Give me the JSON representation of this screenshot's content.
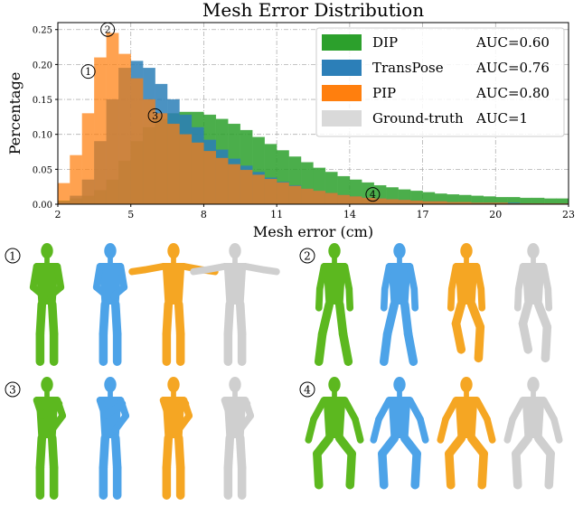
{
  "chart_data": {
    "type": "bar",
    "title": "Mesh Error Distribution",
    "xlabel": "Mesh error (cm)",
    "ylabel": "Percentage",
    "xlim": [
      2,
      23
    ],
    "ylim": [
      0,
      0.26
    ],
    "xticks": [
      "2",
      "5",
      "8",
      "11",
      "14",
      "17",
      "20",
      "23"
    ],
    "yticks": [
      "0.00",
      "0.05",
      "0.10",
      "0.15",
      "0.20",
      "0.25"
    ],
    "bin_width": 0.5,
    "x_bin_starts": [
      2.0,
      2.5,
      3.0,
      3.5,
      4.0,
      4.5,
      5.0,
      5.5,
      6.0,
      6.5,
      7.0,
      7.5,
      8.0,
      8.5,
      9.0,
      9.5,
      10.0,
      10.5,
      11.0,
      11.5,
      12.0,
      12.5,
      13.0,
      13.5,
      14.0,
      14.5,
      15.0,
      15.5,
      16.0,
      16.5,
      17.0,
      17.5,
      18.0,
      18.5,
      19.0,
      19.5,
      20.0,
      20.5,
      21.0,
      21.5,
      22.0,
      22.5
    ],
    "grid": true,
    "legend_position": "top-right",
    "series": [
      {
        "name": "DIP",
        "auc": "AUC=0.60",
        "color": "#2ca02c",
        "values": [
          0.005,
          0.008,
          0.012,
          0.02,
          0.035,
          0.062,
          0.09,
          0.11,
          0.122,
          0.13,
          0.132,
          0.132,
          0.128,
          0.122,
          0.115,
          0.106,
          0.096,
          0.086,
          0.077,
          0.068,
          0.06,
          0.052,
          0.046,
          0.04,
          0.035,
          0.031,
          0.027,
          0.024,
          0.021,
          0.019,
          0.017,
          0.015,
          0.014,
          0.013,
          0.012,
          0.011,
          0.01,
          0.01,
          0.009,
          0.009,
          0.008,
          0.008
        ]
      },
      {
        "name": "TransPose",
        "auc": "AUC=0.76",
        "color": "#2c7fb8",
        "values": [
          0.004,
          0.012,
          0.035,
          0.09,
          0.15,
          0.195,
          0.205,
          0.195,
          0.172,
          0.15,
          0.128,
          0.11,
          0.092,
          0.078,
          0.065,
          0.055,
          0.046,
          0.038,
          0.032,
          0.027,
          0.022,
          0.019,
          0.016,
          0.013,
          0.011,
          0.009,
          0.008,
          0.007,
          0.006,
          0.005,
          0.004,
          0.004,
          0.003,
          0.003,
          0.002,
          0.002,
          0.002,
          0.002,
          0.001,
          0.001,
          0.001,
          0.001
        ]
      },
      {
        "name": "PIP",
        "auc": "AUC=0.80",
        "color": "#ff7f0e",
        "values": [
          0.03,
          0.07,
          0.13,
          0.21,
          0.245,
          0.215,
          0.18,
          0.15,
          0.13,
          0.115,
          0.1,
          0.088,
          0.076,
          0.066,
          0.057,
          0.049,
          0.042,
          0.036,
          0.031,
          0.026,
          0.022,
          0.019,
          0.016,
          0.013,
          0.011,
          0.009,
          0.008,
          0.007,
          0.006,
          0.005,
          0.004,
          0.004,
          0.003,
          0.003,
          0.002,
          0.002,
          0.002,
          0.001,
          0.001,
          0.001,
          0.001,
          0.001
        ]
      },
      {
        "name": "Ground-truth",
        "auc": "AUC=1",
        "color": "#d9d9d9",
        "values": []
      }
    ],
    "annotations": [
      {
        "label": "1",
        "x": 3.25,
        "y": 0.19
      },
      {
        "label": "2",
        "x": 4.05,
        "y": 0.25
      },
      {
        "label": "3",
        "x": 6.0,
        "y": 0.127
      },
      {
        "label": "4",
        "x": 14.95,
        "y": 0.014
      }
    ]
  },
  "figures": {
    "colors": {
      "DIP": "#5cb81f",
      "TransPose": "#4da3e8",
      "PIP": "#f5a623",
      "Ground-truth": "#cfcfcf"
    },
    "rows": [
      {
        "label": "1"
      },
      {
        "label": "2"
      },
      {
        "label": "3"
      },
      {
        "label": "4"
      }
    ]
  }
}
